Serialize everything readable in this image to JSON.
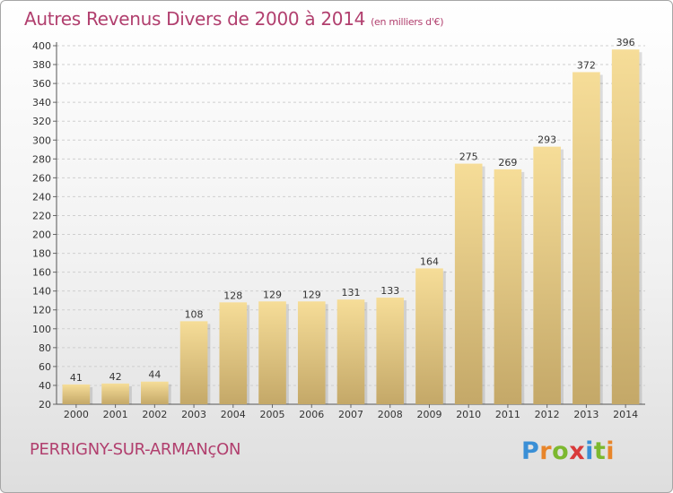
{
  "header": {
    "title": "Autres Revenus Divers de 2000 à 2014",
    "unit": "(en milliers d'€)"
  },
  "footer": {
    "commune": "PERRIGNY-SUR-ARMANçON",
    "logo_text": "Proxiti",
    "logo_colors": [
      "#3a8fd6",
      "#e8852a",
      "#7cb82f",
      "#d93a3a",
      "#3a8fd6",
      "#7cb82f",
      "#e8852a"
    ]
  },
  "colors": {
    "title": "#b13f6e",
    "bar_light": "#f6dd98",
    "bar_dark": "#c4a868"
  },
  "chart_data": {
    "type": "bar",
    "title": "Autres Revenus Divers de 2000 à 2014",
    "xlabel": "",
    "ylabel": "",
    "categories": [
      "2000",
      "2001",
      "2002",
      "2003",
      "2004",
      "2005",
      "2006",
      "2007",
      "2008",
      "2009",
      "2010",
      "2011",
      "2012",
      "2013",
      "2014"
    ],
    "values": [
      41,
      42,
      44,
      108,
      128,
      129,
      129,
      131,
      133,
      164,
      275,
      269,
      293,
      372,
      396
    ],
    "ylim": [
      20,
      400
    ],
    "yticks": [
      20,
      40,
      60,
      80,
      100,
      120,
      140,
      160,
      180,
      200,
      220,
      240,
      260,
      280,
      300,
      320,
      340,
      360,
      380,
      400
    ],
    "grid": true,
    "data_labels": true
  }
}
